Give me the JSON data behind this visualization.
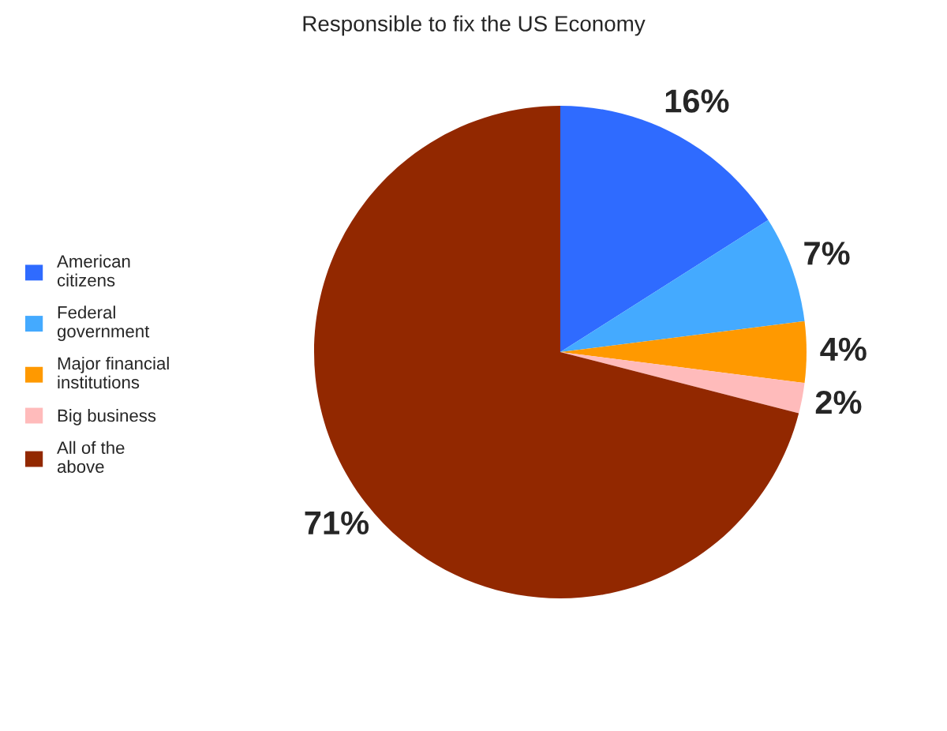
{
  "chart_data": {
    "type": "pie",
    "title": "Responsible to fix the US Economy",
    "categories": [
      "American\ncitizens",
      "Federal\ngovernment",
      "Major financial\ninstitutions",
      "Big business",
      "All of the\nabove"
    ],
    "values": [
      16,
      7,
      4,
      2,
      71
    ],
    "colors": [
      "#2f6bff",
      "#44aaff",
      "#ff9900",
      "#ffbbbb",
      "#922800"
    ],
    "value_labels": [
      "16%",
      "7%",
      "4%",
      "2%",
      "71%"
    ],
    "legend": "left"
  }
}
